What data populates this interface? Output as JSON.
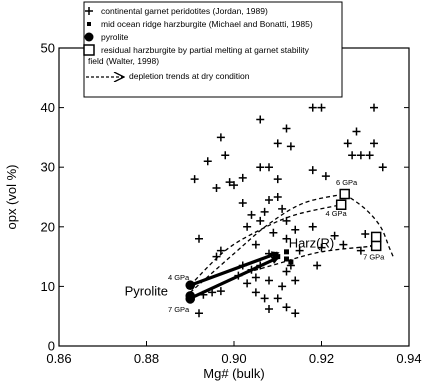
{
  "chart_data": {
    "type": "scatter",
    "xlabel": "Mg# (bulk)",
    "ylabel": "opx (vol %)",
    "xlim": [
      0.86,
      0.94
    ],
    "ylim": [
      0,
      50
    ],
    "x_ticks": [
      "0.86",
      "0.88",
      "0.90",
      "0.92",
      "0.94"
    ],
    "y_ticks": [
      "0",
      "10",
      "20",
      "30",
      "40",
      "50"
    ],
    "x_tick_values": [
      0.86,
      0.88,
      0.9,
      0.92,
      0.94
    ],
    "y_tick_values": [
      0,
      10,
      20,
      30,
      40,
      50
    ],
    "grid": false,
    "legend_position": "top",
    "legend": [
      {
        "symbol": "plus",
        "label": "continental garnet peridotites (Jordan, 1989)"
      },
      {
        "symbol": "small-square",
        "label": "mid ocean ridge harzburgite (Michael and Bonatti, 1985)"
      },
      {
        "symbol": "circle",
        "label": "pyrolite"
      },
      {
        "symbol": "open-square",
        "label": "residual harzburgite by partial melting at garnet stability",
        "label_line2": "field (Walter, 1998)"
      },
      {
        "symbol": "dashed-arrow",
        "label": "depletion trends at dry condition"
      }
    ],
    "series": [
      {
        "name": "continental garnet peridotites (Jordan, 1989)",
        "marker": "plus",
        "points": [
          [
            0.891,
            28
          ],
          [
            0.896,
            26.5
          ],
          [
            0.894,
            31
          ],
          [
            0.899,
            27.5
          ],
          [
            0.902,
            28.2
          ],
          [
            0.897,
            35
          ],
          [
            0.898,
            32
          ],
          [
            0.9,
            27
          ],
          [
            0.906,
            38
          ],
          [
            0.906,
            30
          ],
          [
            0.908,
            30
          ],
          [
            0.91,
            34
          ],
          [
            0.912,
            36.5
          ],
          [
            0.913,
            33.5
          ],
          [
            0.918,
            40
          ],
          [
            0.92,
            40
          ],
          [
            0.918,
            29.5
          ],
          [
            0.921,
            28.5
          ],
          [
            0.926,
            34
          ],
          [
            0.928,
            36
          ],
          [
            0.932,
            40
          ],
          [
            0.932,
            34
          ],
          [
            0.929,
            32
          ],
          [
            0.927,
            32
          ],
          [
            0.931,
            32
          ],
          [
            0.934,
            30
          ],
          [
            0.902,
            24
          ],
          [
            0.904,
            22
          ],
          [
            0.903,
            20
          ],
          [
            0.906,
            21
          ],
          [
            0.907,
            22.5
          ],
          [
            0.909,
            19
          ],
          [
            0.911,
            23
          ],
          [
            0.912,
            21
          ],
          [
            0.912,
            18
          ],
          [
            0.914,
            19.5
          ],
          [
            0.915,
            16
          ],
          [
            0.918,
            20
          ],
          [
            0.92,
            16.5
          ],
          [
            0.923,
            18.5
          ],
          [
            0.908,
            24.5
          ],
          [
            0.91,
            25
          ],
          [
            0.905,
            17
          ],
          [
            0.908,
            15.5
          ],
          [
            0.896,
            15
          ],
          [
            0.897,
            16
          ],
          [
            0.892,
            18
          ],
          [
            0.901,
            11.8
          ],
          [
            0.903,
            10.5
          ],
          [
            0.905,
            9
          ],
          [
            0.907,
            8
          ],
          [
            0.91,
            8
          ],
          [
            0.905,
            11.5
          ],
          [
            0.908,
            11
          ],
          [
            0.912,
            12.5
          ],
          [
            0.914,
            11
          ],
          [
            0.897,
            9.2
          ],
          [
            0.895,
            9
          ],
          [
            0.892,
            5.5
          ],
          [
            0.908,
            6.2
          ],
          [
            0.912,
            6.5
          ],
          [
            0.914,
            5.5
          ],
          [
            0.89,
            8.2
          ],
          [
            0.893,
            8.6
          ],
          [
            0.902,
            13.5
          ],
          [
            0.911,
            10
          ],
          [
            0.913,
            13.5
          ],
          [
            0.919,
            13.5
          ],
          [
            0.929,
            16
          ],
          [
            0.925,
            17
          ],
          [
            0.932,
            16.8
          ],
          [
            0.93,
            18.8
          ],
          [
            0.91,
            28
          ],
          [
            0.906,
            13.5
          ],
          [
            0.904,
            12.8
          ]
        ]
      },
      {
        "name": "mid ocean ridge harzburgite (Michael and Bonatti, 1985)",
        "marker": "small-square",
        "points": [
          [
            0.91,
            15.0
          ],
          [
            0.912,
            14.6
          ],
          [
            0.913,
            14.1
          ],
          [
            0.912,
            15.8
          ]
        ]
      },
      {
        "name": "pyrolite",
        "marker": "circle",
        "points": [
          [
            0.89,
            10.2
          ],
          [
            0.89,
            8.4
          ],
          [
            0.89,
            7.9
          ]
        ]
      },
      {
        "name": "residual harzburgite by partial melting at garnet stability field (Walter, 1998)",
        "marker": "open-square",
        "points": [
          [
            0.9245,
            23.7
          ],
          [
            0.9253,
            25.5
          ],
          [
            0.9325,
            16.8
          ],
          [
            0.9325,
            18.3
          ]
        ]
      }
    ],
    "trends": [
      {
        "label": "6 GPa",
        "points": [
          [
            0.89,
            9.0
          ],
          [
            0.9,
            15.5
          ],
          [
            0.908,
            20.5
          ],
          [
            0.916,
            24.0
          ],
          [
            0.9253,
            25.5
          ]
        ]
      },
      {
        "label": "4 GPa",
        "points": [
          [
            0.89,
            10.2
          ],
          [
            0.898,
            16.0
          ],
          [
            0.906,
            19.5
          ],
          [
            0.914,
            22.0
          ],
          [
            0.9245,
            23.7
          ]
        ]
      },
      {
        "label": "7 GPa",
        "points": [
          [
            0.89,
            7.9
          ],
          [
            0.9,
            11.5
          ],
          [
            0.91,
            13.8
          ],
          [
            0.92,
            15.8
          ],
          [
            0.9325,
            16.8
          ]
        ]
      },
      {
        "label": "",
        "points": [
          [
            0.9253,
            25.5
          ],
          [
            0.93,
            23.0
          ],
          [
            0.9335,
            20.0
          ],
          [
            0.9355,
            16.5
          ],
          [
            0.9365,
            14.8
          ]
        ]
      }
    ],
    "arrows": [
      {
        "from": [
          0.89,
          10.2
        ],
        "to": [
          0.91,
          15.6
        ]
      },
      {
        "from": [
          0.89,
          8.0
        ],
        "to": [
          0.91,
          14.8
        ]
      }
    ],
    "annotations": [
      {
        "text": "Pyrolite",
        "x": 0.875,
        "y": 8.5,
        "size": "large"
      },
      {
        "text": "Harz(R)",
        "x": 0.9125,
        "y": 16.5,
        "size": "large"
      },
      {
        "text": "4 GPa",
        "x": 0.8849,
        "y": 11.1,
        "size": "small"
      },
      {
        "text": "7 GPa",
        "x": 0.8849,
        "y": 5.7,
        "size": "small"
      },
      {
        "text": "6 GPa",
        "x": 0.9233,
        "y": 27.0,
        "size": "small"
      },
      {
        "text": "4 GPa",
        "x": 0.9209,
        "y": 21.8,
        "size": "small"
      },
      {
        "text": "7 GPa",
        "x": 0.9295,
        "y": 14.5,
        "size": "small"
      }
    ]
  }
}
